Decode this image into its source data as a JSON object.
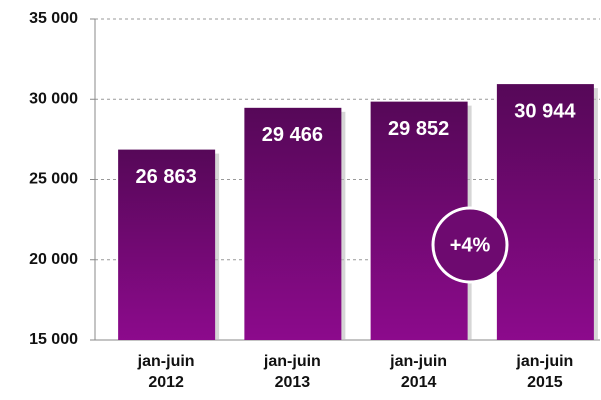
{
  "chart_data": {
    "type": "bar",
    "categories": [
      [
        "jan-juin",
        "2012"
      ],
      [
        "jan-juin",
        "2013"
      ],
      [
        "jan-juin",
        "2014"
      ],
      [
        "jan-juin",
        "2015"
      ]
    ],
    "values": [
      26863,
      29466,
      29852,
      30944
    ],
    "value_labels": [
      "26 863",
      "29 466",
      "29 852",
      "30 944"
    ],
    "color": "#6e0a70",
    "ylim": [
      15000,
      35000
    ],
    "yticks": [
      {
        "value": 15000,
        "label": "15 000"
      },
      {
        "value": 20000,
        "label": "20 000"
      },
      {
        "value": 25000,
        "label": "25 000"
      },
      {
        "value": 30000,
        "label": "30 000"
      },
      {
        "value": 35000,
        "label": "35 000"
      }
    ],
    "grid": true,
    "annotation": "+4%"
  }
}
